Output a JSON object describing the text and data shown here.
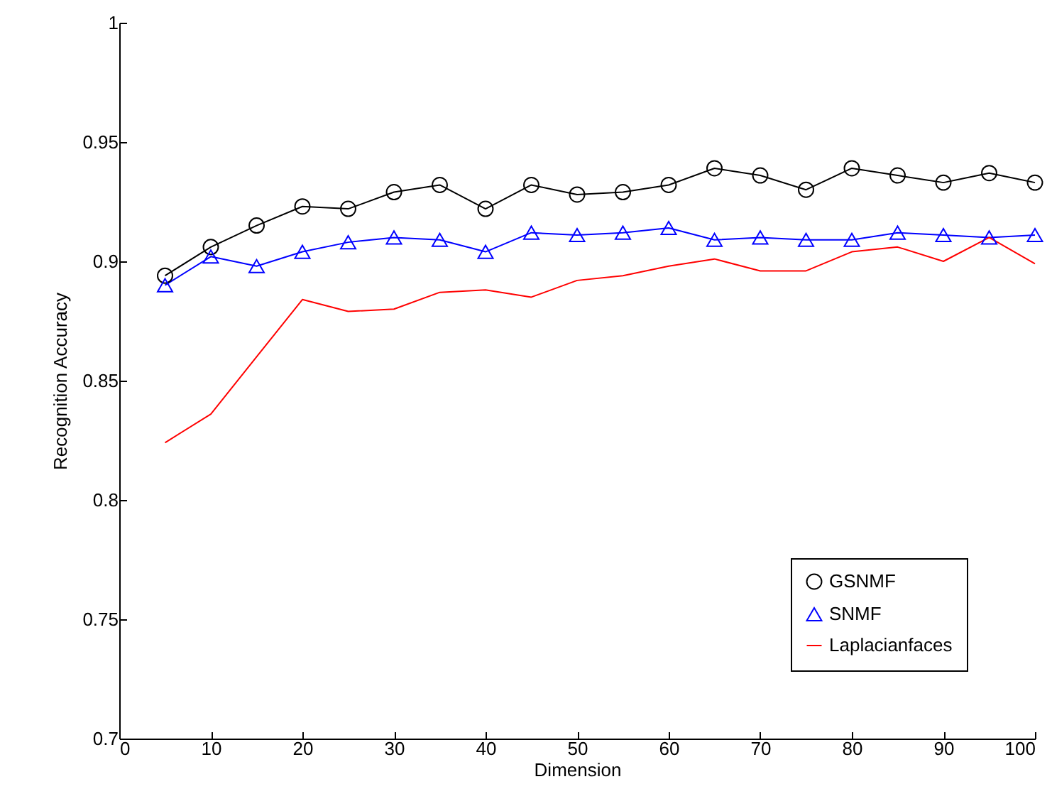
{
  "chart_data": {
    "type": "line",
    "xlabel": "Dimension",
    "ylabel": "Recognition Accuracy",
    "x": [
      5,
      10,
      15,
      20,
      25,
      30,
      35,
      40,
      45,
      50,
      55,
      60,
      65,
      70,
      75,
      80,
      85,
      90,
      95,
      100
    ],
    "series": [
      {
        "name": "GSNMF",
        "color": "#000000",
        "marker": "circle",
        "values": [
          0.894,
          0.906,
          0.915,
          0.923,
          0.922,
          0.929,
          0.932,
          0.922,
          0.932,
          0.928,
          0.929,
          0.932,
          0.939,
          0.936,
          0.93,
          0.939,
          0.936,
          0.933,
          0.937,
          0.933
        ]
      },
      {
        "name": "SNMF",
        "color": "#0000ff",
        "marker": "triangle",
        "values": [
          0.89,
          0.902,
          0.898,
          0.904,
          0.908,
          0.91,
          0.909,
          0.904,
          0.912,
          0.911,
          0.912,
          0.914,
          0.909,
          0.91,
          0.909,
          0.909,
          0.912,
          0.911,
          0.91,
          0.911
        ]
      },
      {
        "name": "Laplacianfaces",
        "color": "#ff0000",
        "marker": "none",
        "values": [
          0.824,
          0.836,
          0.86,
          0.884,
          0.879,
          0.88,
          0.887,
          0.888,
          0.885,
          0.892,
          0.894,
          0.898,
          0.901,
          0.896,
          0.896,
          0.904,
          0.906,
          0.9,
          0.91,
          0.899
        ]
      }
    ],
    "xlim": [
      0,
      100
    ],
    "xticks": [
      0,
      10,
      20,
      30,
      40,
      50,
      60,
      70,
      80,
      90,
      100
    ],
    "ylim": [
      0.7,
      1
    ],
    "yticks": [
      0.7,
      0.75,
      0.8,
      0.85,
      0.9,
      0.95,
      1
    ],
    "grid": false,
    "legend": "bottom right"
  }
}
